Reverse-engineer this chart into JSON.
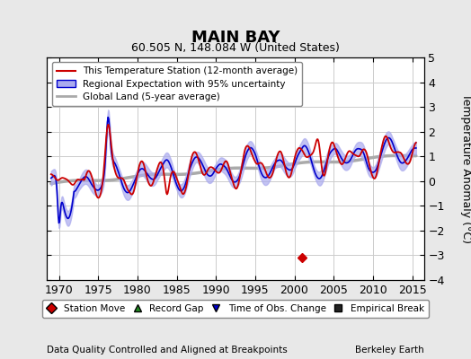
{
  "title": "MAIN BAY",
  "subtitle": "60.505 N, 148.084 W (United States)",
  "ylabel": "Temperature Anomaly (°C)",
  "footer_left": "Data Quality Controlled and Aligned at Breakpoints",
  "footer_right": "Berkeley Earth",
  "xlim": [
    1968.5,
    2016.5
  ],
  "ylim": [
    -4,
    5
  ],
  "yticks": [
    -4,
    -3,
    -2,
    -1,
    0,
    1,
    2,
    3,
    4,
    5
  ],
  "xticks": [
    1970,
    1975,
    1980,
    1985,
    1990,
    1995,
    2000,
    2005,
    2010,
    2015
  ],
  "bg_color": "#e8e8e8",
  "plot_bg_color": "#ffffff",
  "grid_color": "#cccccc",
  "red_color": "#cc0000",
  "blue_color": "#0000cc",
  "blue_fill_color": "#aaaaee",
  "gray_color": "#aaaaaa",
  "station_move_year": 2001.0,
  "station_move_val": -3.1,
  "legend1_items": [
    "This Temperature Station (12-month average)",
    "Regional Expectation with 95% uncertainty",
    "Global Land (5-year average)"
  ],
  "legend2_items": [
    "Station Move",
    "Record Gap",
    "Time of Obs. Change",
    "Empirical Break"
  ]
}
